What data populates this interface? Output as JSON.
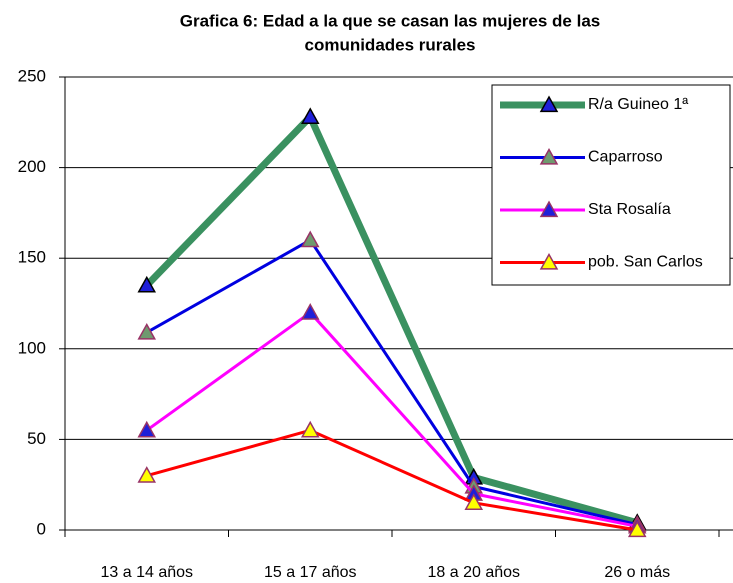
{
  "chart_data": {
    "type": "line",
    "title": [
      "Grafica 6: Edad a la que se casan las mujeres de las",
      "comunidades rurales"
    ],
    "categories": [
      "13 a 14 años",
      "15 a 17 años",
      "18 a 20 años",
      "26 o más"
    ],
    "series": [
      {
        "name": "R/a Guineo 1ª",
        "color": "#3a9160",
        "marker_color": "#1f1fd9",
        "marker_edge": "#000000",
        "line_width": 7,
        "values": [
          135,
          228,
          29,
          4
        ]
      },
      {
        "name": "Caparroso",
        "color": "#0000e0",
        "marker_color": "#6f9a6f",
        "marker_edge": "#993366",
        "line_width": 3,
        "values": [
          109,
          160,
          24,
          3
        ]
      },
      {
        "name": "Sta Rosalía",
        "color": "#ff00ff",
        "marker_color": "#1f1fd9",
        "marker_edge": "#993366",
        "line_width": 3,
        "values": [
          55,
          120,
          20,
          2
        ]
      },
      {
        "name": "pob. San Carlos",
        "color": "#ff0000",
        "marker_color": "#ffff00",
        "marker_edge": "#993366",
        "line_width": 3,
        "values": [
          30,
          55,
          15,
          0
        ]
      }
    ],
    "ylim": [
      0,
      250
    ],
    "yticks": [
      0,
      50,
      100,
      150,
      200,
      250
    ],
    "grid": true,
    "legend": "upper right"
  }
}
